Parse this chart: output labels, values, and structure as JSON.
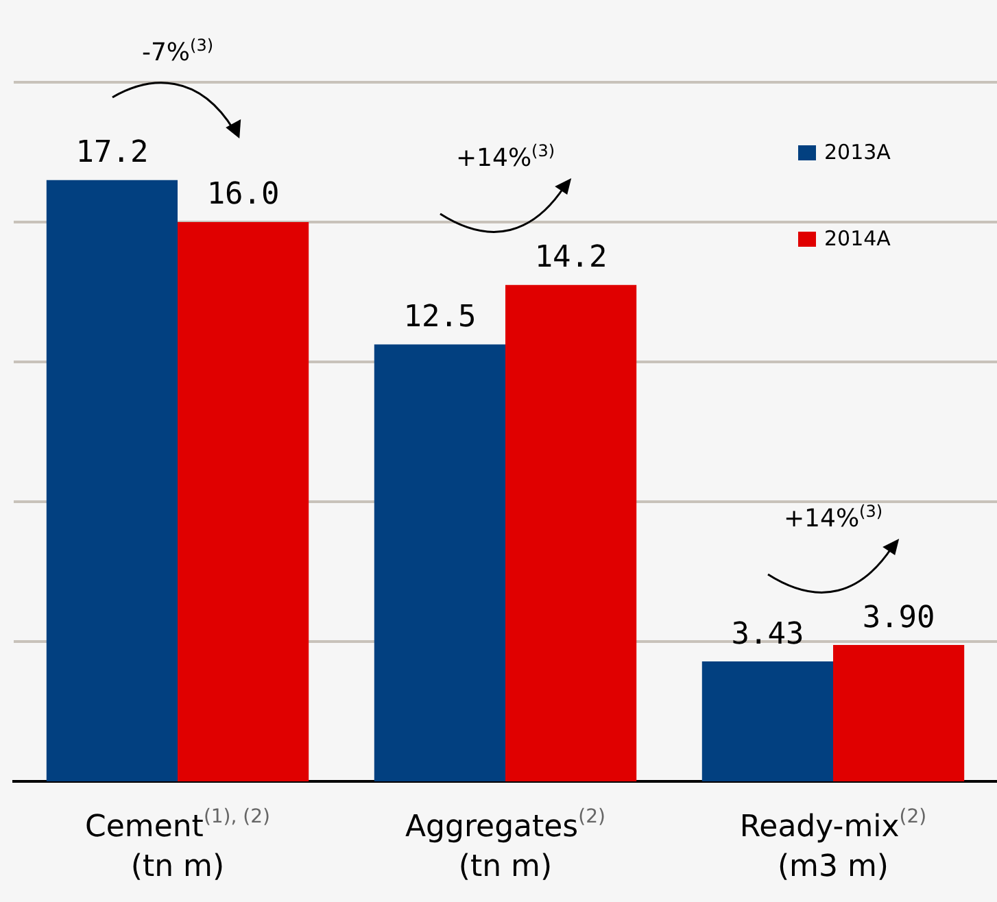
{
  "chart_data": {
    "type": "bar",
    "categories": [
      "Cement$^{(1), (2)}$\n(tn m)",
      "Aggregates$^{(2)}$\n(tn m)",
      "Ready-mix$^{(2)}$\n(m3 m)"
    ],
    "series": [
      {
        "name": "2013A",
        "color": "#024080",
        "values": [
          17.2,
          12.5,
          3.43
        ],
        "value_labels": [
          "17.2",
          "12.5",
          "3.43"
        ]
      },
      {
        "name": "2014A",
        "color": "#e00000",
        "values": [
          16.0,
          14.2,
          3.9
        ],
        "value_labels": [
          "16.0",
          "14.2",
          "3.90"
        ]
      }
    ],
    "ylim": [
      0,
      20
    ],
    "yticks": [
      {
        "value": 4,
        "label": null
      },
      {
        "value": 8,
        "label": null
      },
      {
        "value": 12,
        "label": null
      },
      {
        "value": 16,
        "label": null
      },
      {
        "value": 20,
        "label": null
      }
    ],
    "grid": "y",
    "tick_labels": "x",
    "legend": "top right",
    "annotations": [
      "-7%$^{(3)}$",
      "+14%$^{(3)}$",
      "+14%$^{(3)}$"
    ]
  }
}
